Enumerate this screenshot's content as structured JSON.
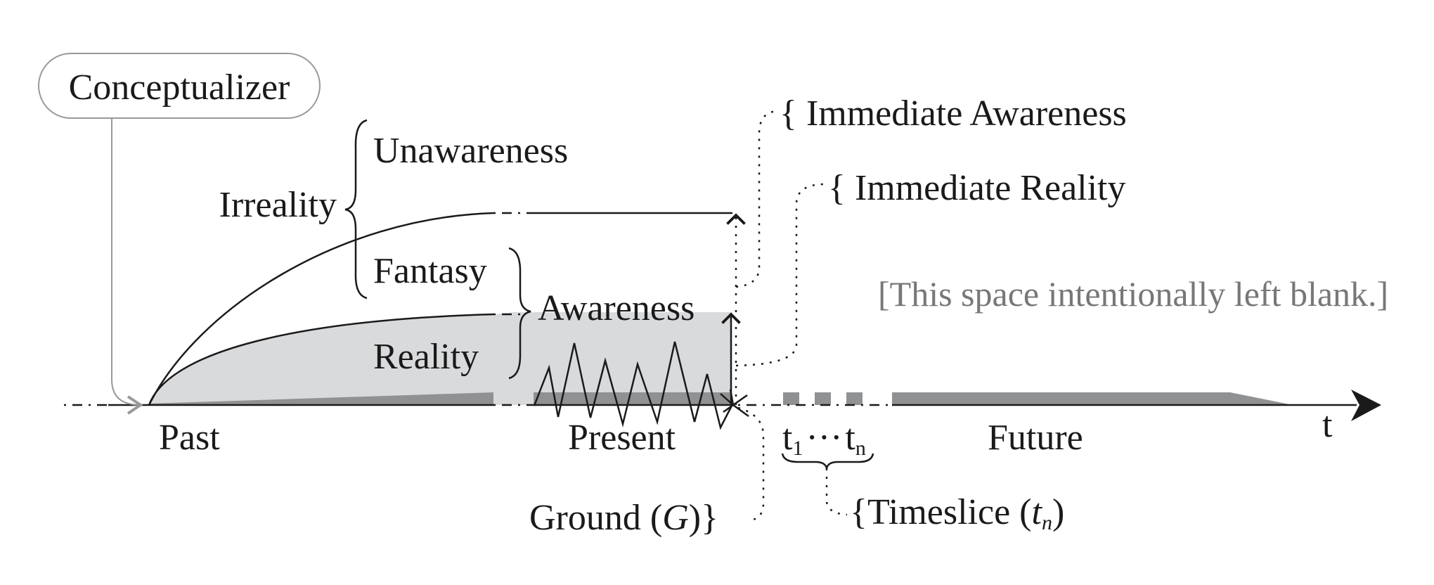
{
  "labels": {
    "conceptualizer": "Conceptualizer",
    "irreality": "Irreality",
    "unawareness": "Unawareness",
    "fantasy": "Fantasy",
    "awareness": "Awareness",
    "reality": "Reality",
    "immediate_awareness": "{ Immediate Awareness",
    "immediate_reality": "{ Immediate Reality",
    "blank_note": "[This space intentionally left blank.]",
    "past": "Past",
    "present": "Present",
    "future": "Future",
    "axis_t": "t",
    "t1_main": "t",
    "t1_sub": "1",
    "ellipsis": "···",
    "tn_main": "t",
    "tn_sub": "n",
    "ground": "Ground (",
    "ground_sym": "G",
    "ground_close": ")}",
    "timeslice": "{Timeslice (",
    "timeslice_sym": "t",
    "timeslice_sub": "n",
    "timeslice_close": ")"
  },
  "colors": {
    "light_fill": "#d9dadc",
    "dark_fill": "#909193",
    "note_text": "#777777",
    "connector_gray": "#999999"
  }
}
